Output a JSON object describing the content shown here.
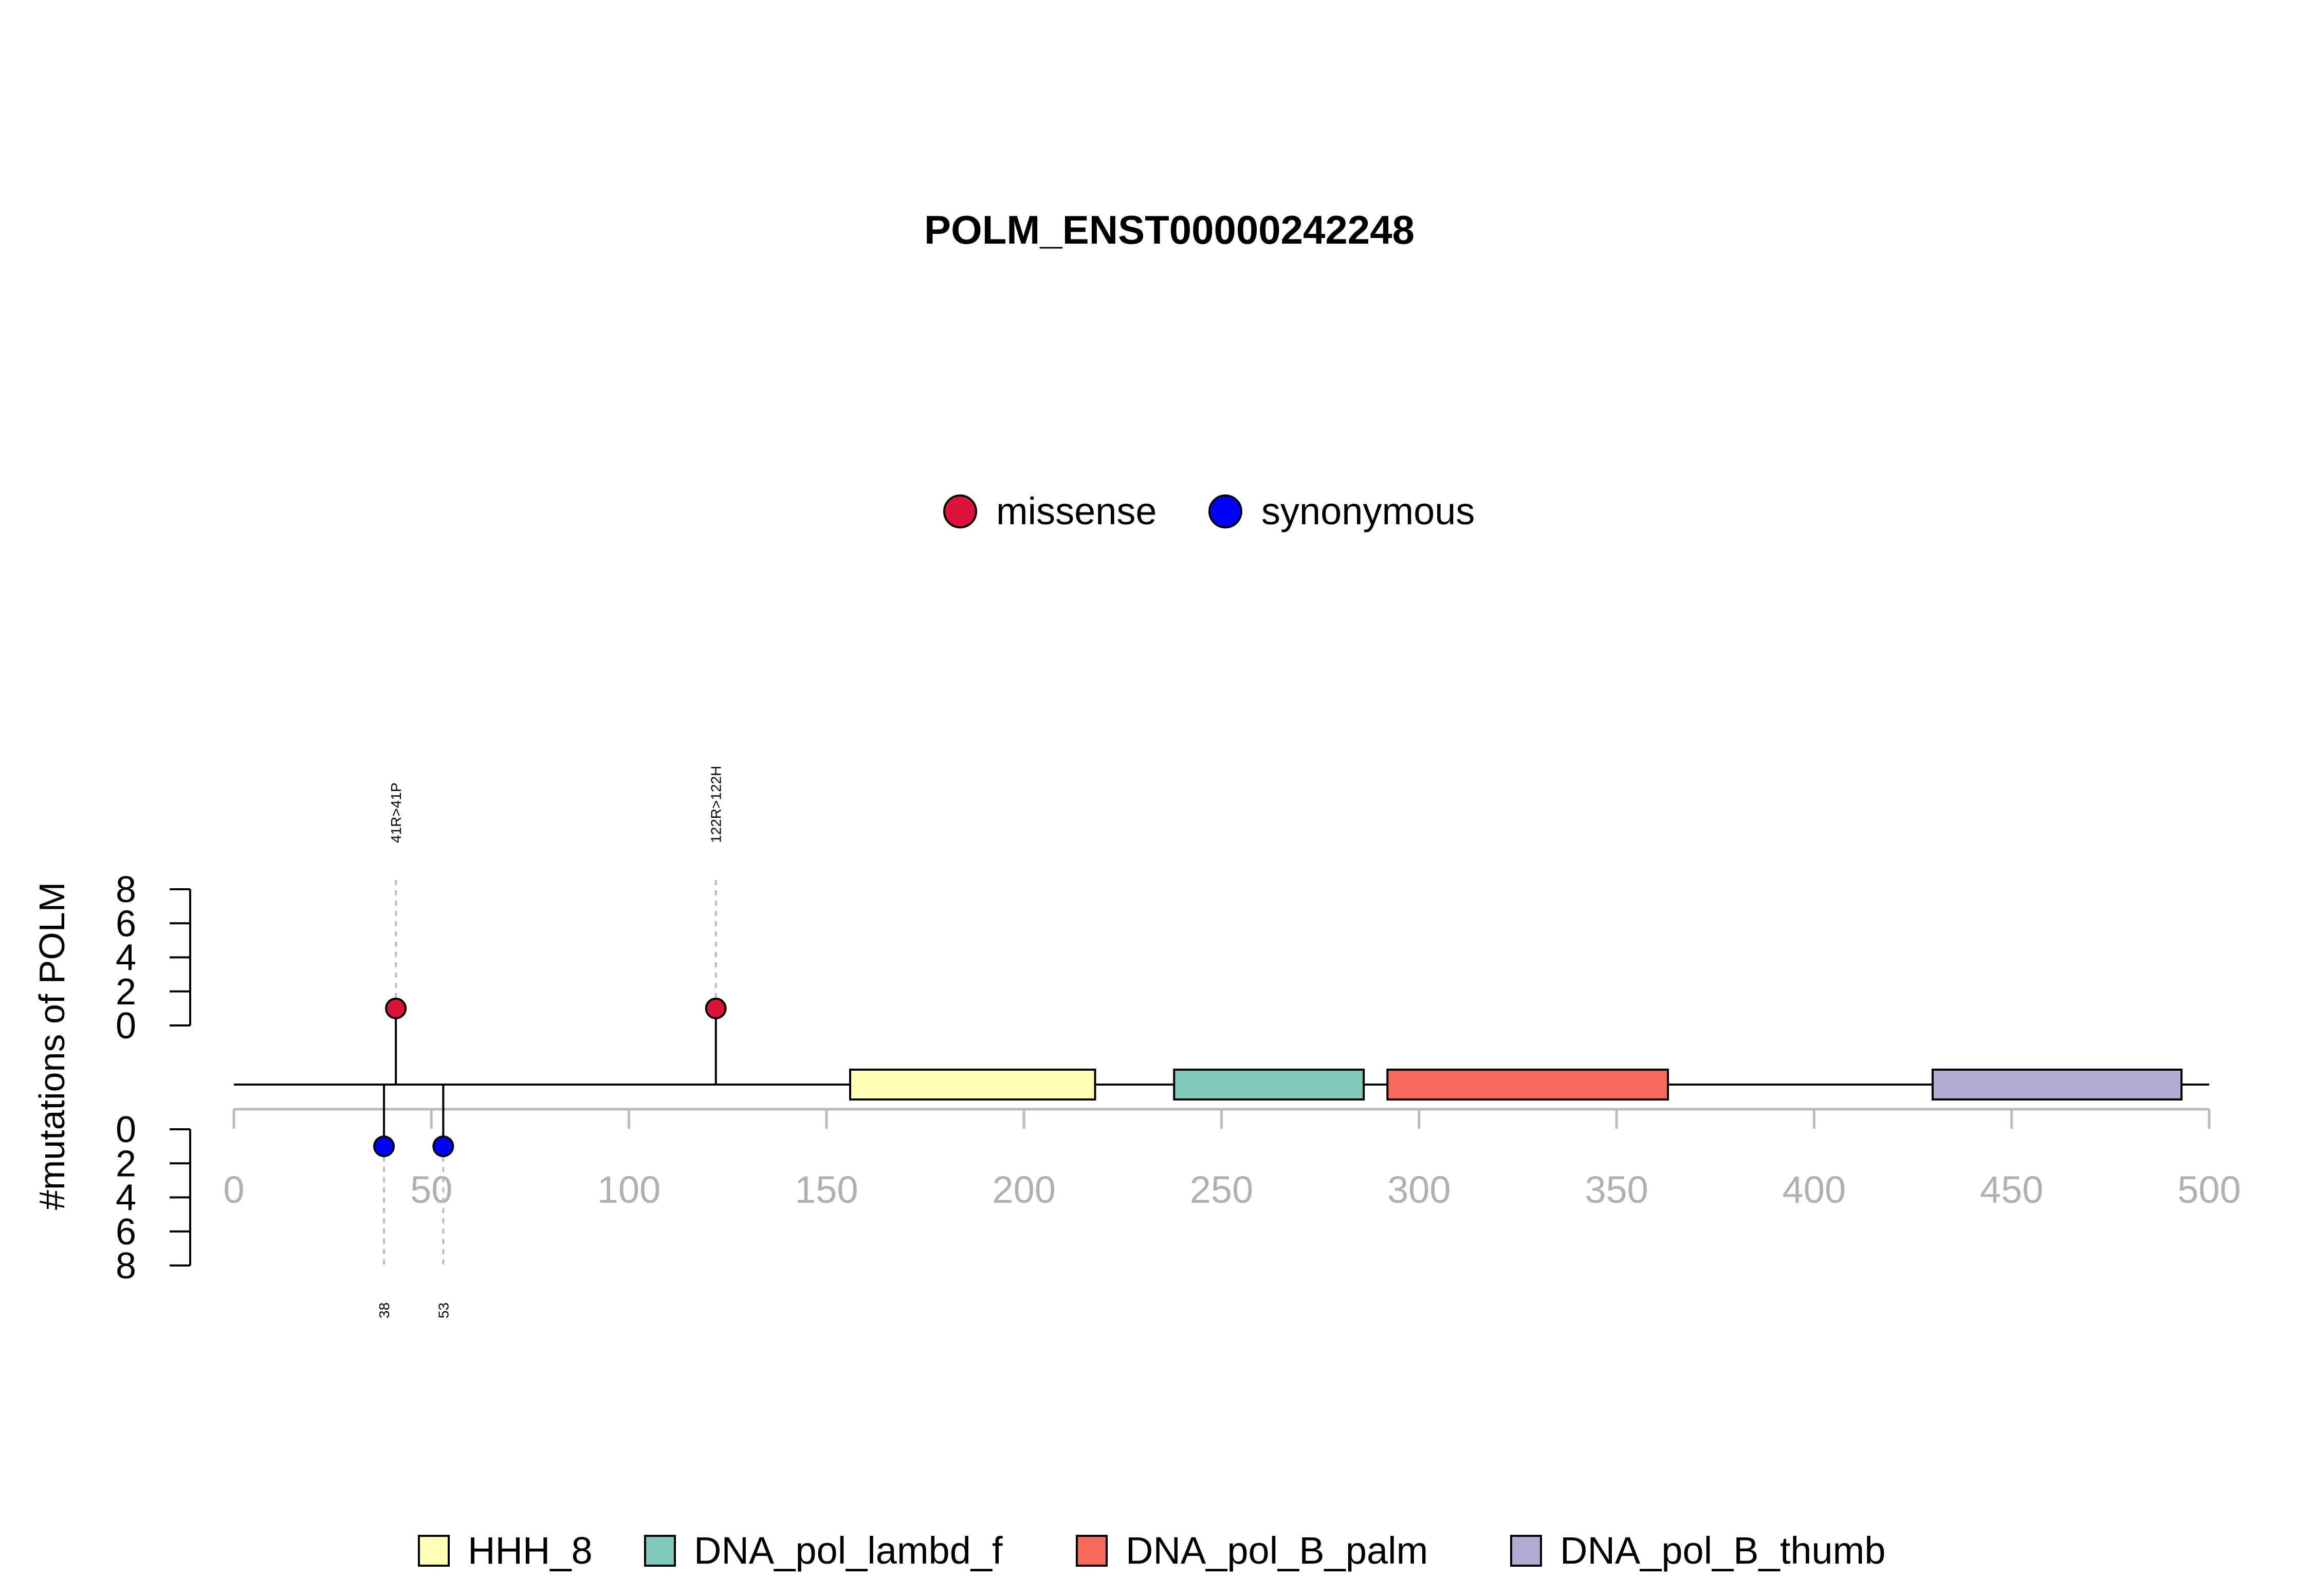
{
  "chart_data": {
    "type": "lollipop",
    "title": "POLM_ENST00000242248",
    "ylabel": "#mutations of POLM",
    "x_range": [
      0,
      500
    ],
    "x_ticks": [
      0,
      50,
      100,
      150,
      200,
      250,
      300,
      350,
      400,
      450,
      500
    ],
    "y_ticks": [
      0,
      2,
      4,
      6,
      8
    ],
    "y_range": [
      0,
      8
    ],
    "mutation_legend": [
      {
        "label": "missense",
        "color": "#DC143C"
      },
      {
        "label": "synonymous",
        "color": "#0000FF"
      }
    ],
    "mutations_top": [
      {
        "position": 41,
        "count": 1,
        "type": "missense",
        "label": "41R>41P"
      },
      {
        "position": 122,
        "count": 1,
        "type": "missense",
        "label": "122R>122H"
      }
    ],
    "mutations_bottom": [
      {
        "position": 38,
        "count": 1,
        "type": "synonymous",
        "label": "38"
      },
      {
        "position": 53,
        "count": 1,
        "type": "synonymous",
        "label": "53"
      }
    ],
    "domains": [
      {
        "name": "HHH_8",
        "start": 156,
        "end": 218,
        "color": "#FFFFB3"
      },
      {
        "name": "DNA_pol_lambd_f",
        "start": 238,
        "end": 286,
        "color": "#7FC9B8"
      },
      {
        "name": "DNA_pol_B_palm",
        "start": 292,
        "end": 363,
        "color": "#F8695C"
      },
      {
        "name": "DNA_pol_B_thumb",
        "start": 430,
        "end": 493,
        "color": "#B2ABD2"
      }
    ]
  }
}
